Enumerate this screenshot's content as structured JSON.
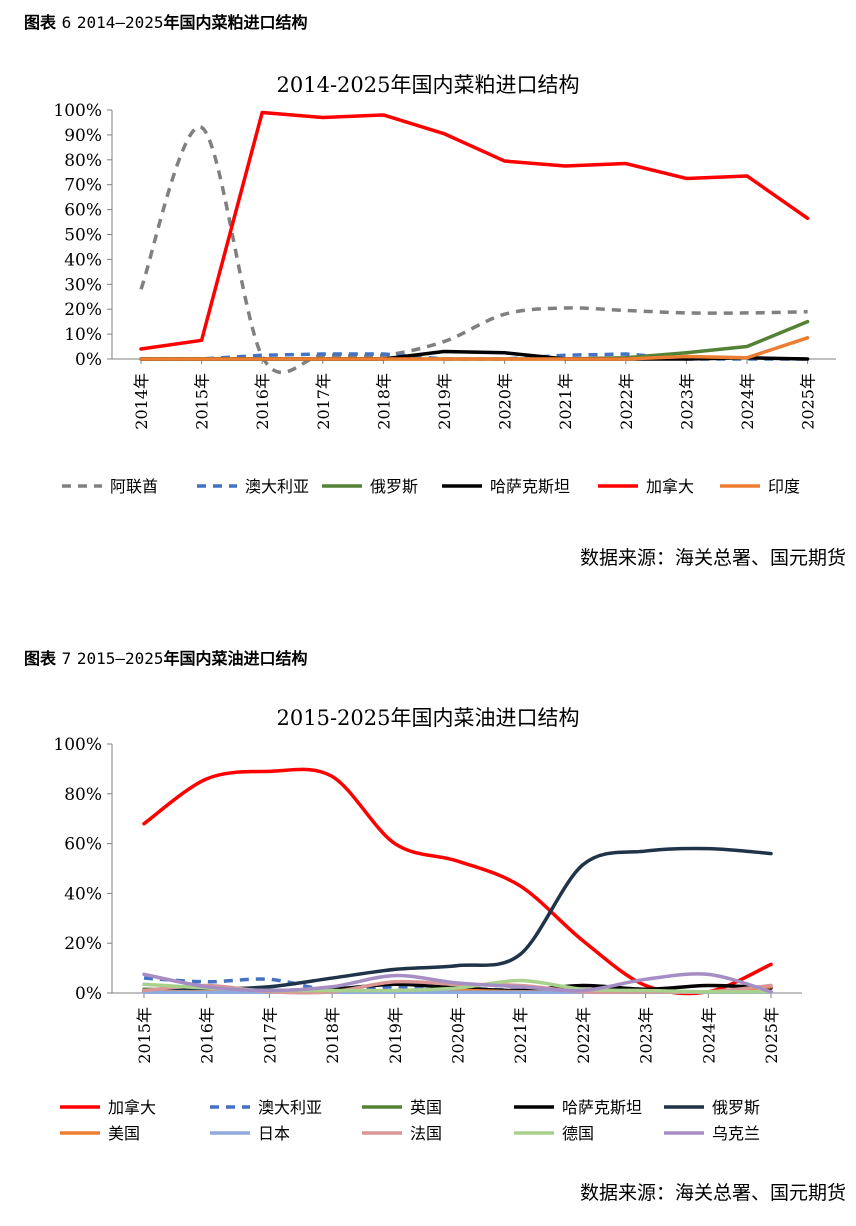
{
  "figures": [
    {
      "caption_prefix": "图表",
      "caption_number": "6",
      "caption_range": "2014—2025",
      "caption_text": "年国内菜粕进口结构",
      "source": "数据来源：海关总署、国元期货"
    },
    {
      "caption_prefix": "图表",
      "caption_number": "7",
      "caption_range": "2015—2025",
      "caption_text": "年国内菜油进口结构",
      "source": "数据来源：海关总署、国元期货"
    }
  ],
  "chart_data": [
    {
      "type": "line",
      "title": "2014-2025年国内菜粕进口结构",
      "categories": [
        "2014年",
        "2015年",
        "2016年",
        "2017年",
        "2018年",
        "2019年",
        "2020年",
        "2021年",
        "2022年",
        "2023年",
        "2024年",
        "2025年"
      ],
      "y_ticks": [
        "0%",
        "10%",
        "20%",
        "30%",
        "40%",
        "50%",
        "60%",
        "70%",
        "80%",
        "90%",
        "100%"
      ],
      "ylim": [
        0,
        100
      ],
      "grid": false,
      "legend_position": "bottom",
      "series": [
        {
          "name": "阿联酋",
          "color": "#808080",
          "dash": true,
          "smooth": true,
          "values": [
            28,
            93,
            1,
            1.5,
            1.5,
            7,
            18,
            20.5,
            19.5,
            18.5,
            18.5,
            19
          ]
        },
        {
          "name": "澳大利亚",
          "color": "#4472C4",
          "dash": true,
          "smooth": false,
          "values": [
            0,
            0,
            1.5,
            2,
            2,
            0,
            0,
            1.5,
            2,
            0,
            0,
            0
          ]
        },
        {
          "name": "俄罗斯",
          "color": "#548235",
          "dash": false,
          "smooth": false,
          "values": [
            0,
            0,
            0,
            0,
            0,
            0,
            0,
            0,
            0.5,
            2.5,
            5,
            15
          ]
        },
        {
          "name": "哈萨克斯坦",
          "color": "#000000",
          "dash": false,
          "smooth": false,
          "values": [
            0,
            0,
            0,
            0,
            0,
            3,
            2.5,
            0,
            0,
            0,
            0.5,
            0
          ]
        },
        {
          "name": "加拿大",
          "color": "#FF0000",
          "dash": false,
          "smooth": false,
          "values": [
            4,
            7.5,
            99,
            97,
            98,
            90.5,
            79.5,
            77.5,
            78.5,
            72.5,
            73.5,
            56.5
          ]
        },
        {
          "name": "印度",
          "color": "#ED7D31",
          "dash": false,
          "smooth": false,
          "values": [
            0,
            0,
            0,
            0,
            0,
            0,
            0,
            0,
            0,
            1,
            0.5,
            8.5
          ]
        }
      ]
    },
    {
      "type": "line",
      "title": "2015-2025年国内菜油进口结构",
      "categories": [
        "2015年",
        "2016年",
        "2017年",
        "2018年",
        "2019年",
        "2020年",
        "2021年",
        "2022年",
        "2023年",
        "2024年",
        "2025年"
      ],
      "y_ticks": [
        "0%",
        "20%",
        "40%",
        "60%",
        "80%",
        "100%"
      ],
      "ylim": [
        0,
        100
      ],
      "grid": false,
      "legend_position": "bottom",
      "series": [
        {
          "name": "加拿大",
          "color": "#FF0000",
          "dash": false,
          "smooth": true,
          "values": [
            68,
            86,
            89,
            87,
            60,
            53,
            43,
            21,
            3,
            0.5,
            11.5
          ]
        },
        {
          "name": "澳大利亚",
          "color": "#4472C4",
          "dash": true,
          "smooth": true,
          "values": [
            6,
            4.5,
            5.5,
            1,
            2.5,
            2,
            1,
            0.5,
            0.5,
            0.5,
            0.5
          ]
        },
        {
          "name": "英国",
          "color": "#548235",
          "dash": false,
          "smooth": true,
          "values": [
            1.5,
            1,
            0.5,
            0.5,
            0.5,
            0.5,
            0.5,
            0.5,
            0.5,
            0.5,
            0.5
          ]
        },
        {
          "name": "哈萨克斯坦",
          "color": "#000000",
          "dash": false,
          "smooth": true,
          "values": [
            0.5,
            0.5,
            1,
            1.5,
            3.5,
            2,
            1,
            3,
            1.5,
            3,
            2
          ]
        },
        {
          "name": "俄罗斯",
          "color": "#1F3349",
          "dash": false,
          "smooth": true,
          "values": [
            1,
            1.5,
            2.5,
            6,
            9.5,
            11,
            15.5,
            51.5,
            57,
            58,
            56
          ]
        },
        {
          "name": "美国",
          "color": "#ED7D31",
          "dash": false,
          "smooth": true,
          "values": [
            0.5,
            0.5,
            0.5,
            0.5,
            0.5,
            1,
            0.5,
            0.5,
            0.5,
            0.5,
            2.5
          ]
        },
        {
          "name": "日本",
          "color": "#8FAADC",
          "dash": false,
          "smooth": true,
          "values": [
            0.3,
            0.3,
            0.3,
            0.3,
            0.3,
            0.3,
            0.3,
            0.3,
            0.3,
            0.3,
            0.3
          ]
        },
        {
          "name": "法国",
          "color": "#D99694",
          "dash": false,
          "smooth": true,
          "values": [
            1,
            3,
            0.5,
            0.5,
            4.5,
            3.5,
            3,
            0.5,
            0.5,
            0.5,
            3
          ]
        },
        {
          "name": "德国",
          "color": "#A9D18E",
          "dash": false,
          "smooth": true,
          "values": [
            3.5,
            2,
            1,
            1,
            1,
            2,
            5,
            1.5,
            1,
            0.5,
            0.5
          ]
        },
        {
          "name": "乌克兰",
          "color": "#A68DC4",
          "dash": false,
          "smooth": true,
          "values": [
            7.5,
            2.5,
            1,
            2.5,
            7,
            4,
            2.5,
            1,
            5.5,
            7.5,
            0.5
          ]
        }
      ]
    }
  ]
}
